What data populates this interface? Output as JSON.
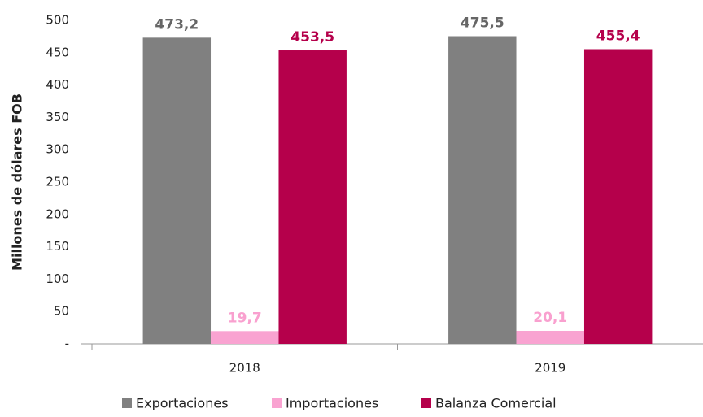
{
  "chart_data": {
    "type": "bar",
    "y_label": "Millones de dólares FOB",
    "categories": [
      "2018",
      "2019"
    ],
    "series": [
      {
        "name": "Exportaciones",
        "color": "#808080",
        "label_color": "#666666",
        "values": [
          473.2,
          475.5
        ],
        "value_labels": [
          "473,2",
          "475,5"
        ]
      },
      {
        "name": "Importaciones",
        "color": "#f9a3d1",
        "label_color": "#f9a0cf",
        "values": [
          19.7,
          20.1
        ],
        "value_labels": [
          "19,7",
          "20,1"
        ]
      },
      {
        "name": "Balanza Comercial",
        "color": "#b5004b",
        "label_color": "#b5004b",
        "values": [
          453.5,
          455.4
        ],
        "value_labels": [
          "453,5",
          "455,4"
        ]
      }
    ],
    "ylim": [
      0,
      500
    ],
    "yticks": [
      {
        "value": 0,
        "label": "-"
      },
      50,
      100,
      150,
      200,
      250,
      300,
      350,
      400,
      450,
      500
    ],
    "legend": "bottom"
  }
}
